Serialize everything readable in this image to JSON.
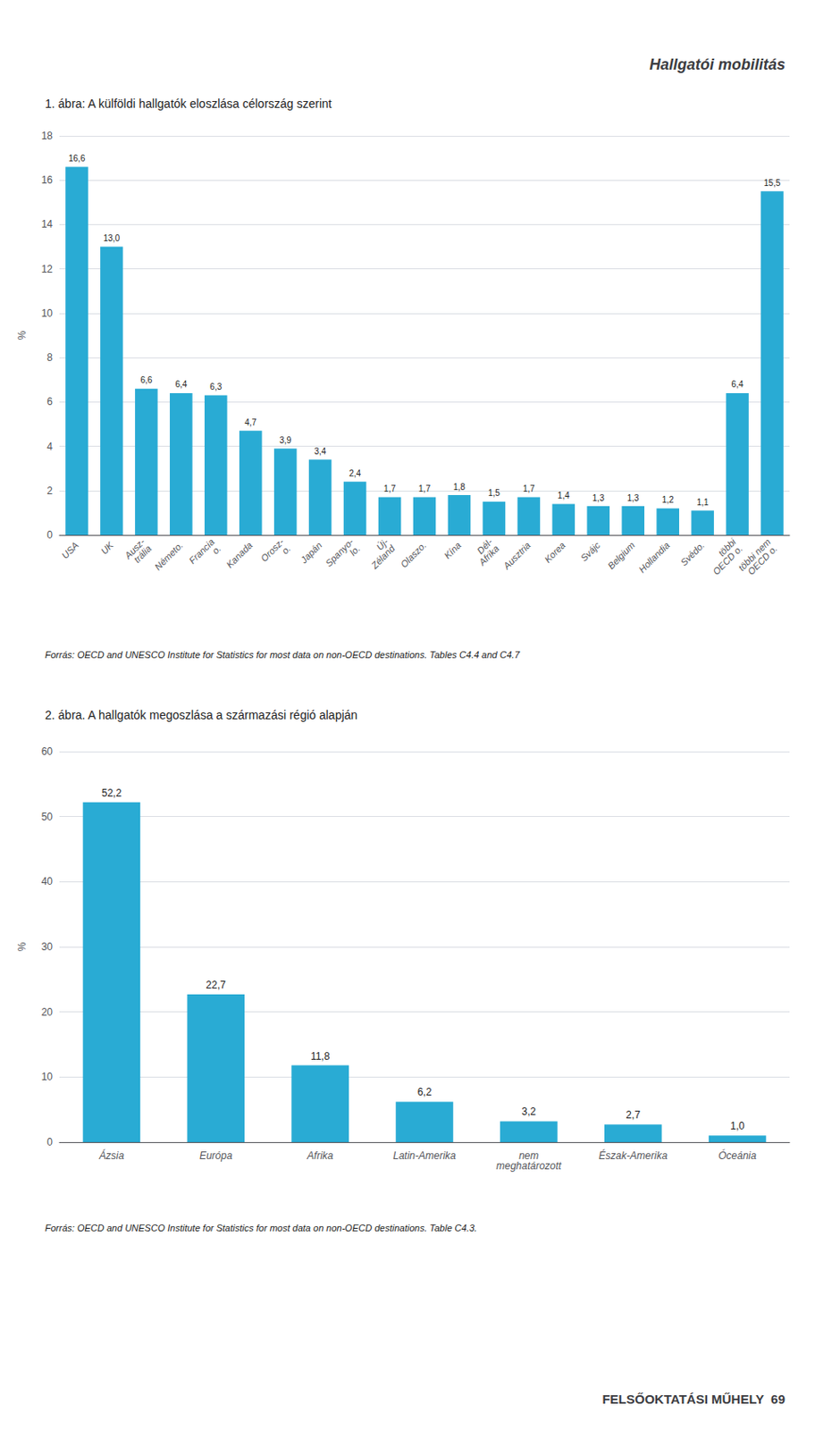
{
  "header": "Hallgatói mobilitás",
  "footer": "FELSŐOKTATÁSI MŰHELY  69",
  "chart_data": [
    {
      "type": "bar",
      "title": "1. ábra: A külföldi hallgatók eloszlása célország szerint",
      "ylabel": "%",
      "categories": [
        "USA",
        "UK",
        "Ausz-\ntrália",
        "Németo.",
        "Francia\no.",
        "Kanada",
        "Orosz-\no.",
        "Japán",
        "Spanyo-\nlo.",
        "Új-\nZéland",
        "Olaszo.",
        "Kína",
        "Dél-\nAfrika",
        "Ausztria",
        "Korea",
        "Svájc",
        "Belgium",
        "Hollandia",
        "Svédo.",
        "többi\nOECD o.",
        "többi nem\nOECD o."
      ],
      "values": [
        16.6,
        13.0,
        6.6,
        6.4,
        6.3,
        4.7,
        3.9,
        3.4,
        2.4,
        1.7,
        1.7,
        1.8,
        1.5,
        1.7,
        1.4,
        1.3,
        1.3,
        1.2,
        1.1,
        6.4,
        15.5
      ],
      "value_labels": [
        "16,6",
        "13,0",
        "6,6",
        "6,4",
        "6,3",
        "4,7",
        "3,9",
        "3,4",
        "2,4",
        "1,7",
        "1,7",
        "1,8",
        "1,5",
        "1,7",
        "1,4",
        "1,3",
        "1,3",
        "1,2",
        "1,1",
        "6,4",
        "15,5"
      ],
      "data_labels": true,
      "color": "#29ABD4",
      "ylim": [
        0,
        18
      ],
      "yticks": [
        0,
        2,
        4,
        6,
        8,
        10,
        12,
        14,
        16,
        18
      ],
      "grid": true,
      "source": "Forrás: OECD and UNESCO Institute for Statistics for most data on non-OECD destinations. Tables C4.4 and C4.7"
    },
    {
      "type": "bar",
      "title": "2. ábra. A hallgatók megoszlása a származási régió alapján",
      "ylabel": "%",
      "categories": [
        "Ázsia",
        "Európa",
        "Afrika",
        "Latin-Amerika",
        "nem\nmeghatározott",
        "Észak-Amerika",
        "Óceánia"
      ],
      "values": [
        52.2,
        22.7,
        11.8,
        6.2,
        3.2,
        2.7,
        1.0
      ],
      "value_labels": [
        "52,2",
        "22,7",
        "11,8",
        "6,2",
        "3,2",
        "2,7",
        "1,0"
      ],
      "data_labels": true,
      "color": "#29ABD4",
      "ylim": [
        0,
        60
      ],
      "yticks": [
        0,
        10,
        20,
        30,
        40,
        50,
        60
      ],
      "grid": true,
      "source": "Forrás: OECD and UNESCO Institute for Statistics for most data on non-OECD destinations. Table C4.3."
    }
  ]
}
